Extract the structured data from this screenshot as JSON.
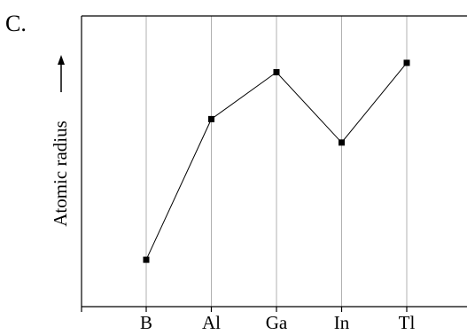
{
  "chart_data": {
    "type": "line",
    "panel_label": "C.",
    "ylabel": "Atomic radius",
    "xlabel": "",
    "categories": [
      "B",
      "Al",
      "Ga",
      "In",
      "Tl"
    ],
    "series": [
      {
        "values": [
          1.0,
          4.0,
          5.0,
          3.5,
          5.2
        ]
      }
    ],
    "ylim": [
      0,
      6.2
    ],
    "y_ticks_shown": false,
    "grid": "vertical lines at each category",
    "legend": "none",
    "marker": "square",
    "colors": {
      "line": "#000000",
      "marker": "#000000",
      "grid": "#b0b0b0",
      "axis": "#000000"
    }
  }
}
